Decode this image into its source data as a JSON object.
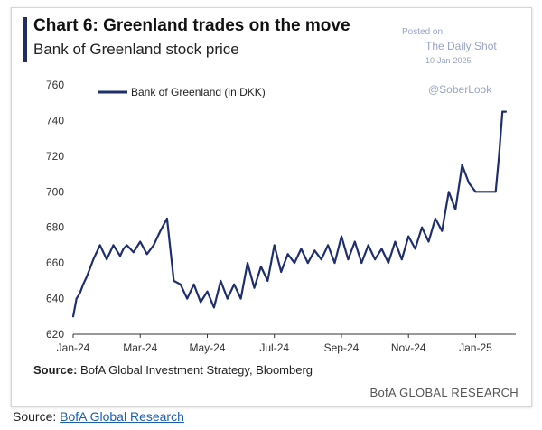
{
  "header": {
    "title": "Chart 6: Greenland trades on the move",
    "subtitle": "Bank of Greenland stock price"
  },
  "watermark": {
    "posted": "Posted on",
    "publication": "The Daily Shot",
    "date": "10-Jan-2025",
    "handle": "@SoberLook"
  },
  "footer": {
    "source_label": "Source:",
    "source_text": "BofA Global Investment Strategy, Bloomberg",
    "brand": "BofA GLOBAL RESEARCH"
  },
  "page_source": {
    "label": "Source:",
    "link_text": "BofA Global Research"
  },
  "colors": {
    "line": "#1f2f6e",
    "axis": "#333333",
    "title_bar": "#1f2f5f",
    "link": "#1a5fb4"
  },
  "chart_data": {
    "type": "line",
    "title": "Chart 6: Greenland trades on the move",
    "subtitle": "Bank of Greenland stock price",
    "xlabel": "",
    "ylabel": "",
    "ylim": [
      620,
      760
    ],
    "yticks": [
      "620",
      "640",
      "660",
      "680",
      "700",
      "720",
      "740",
      "760"
    ],
    "xticks": [
      "Jan-24",
      "Mar-24",
      "May-24",
      "Jul-24",
      "Sep-24",
      "Nov-24",
      "Jan-25"
    ],
    "grid": false,
    "legend": "top-left",
    "series": [
      {
        "name": "Bank of Greenland (in DKK)",
        "x": [
          0,
          0.1,
          0.2,
          0.3,
          0.4,
          0.5,
          0.6,
          0.8,
          1.0,
          1.2,
          1.4,
          1.5,
          1.6,
          1.8,
          2.0,
          2.2,
          2.4,
          2.6,
          2.8,
          3.0,
          3.2,
          3.4,
          3.6,
          3.8,
          4.0,
          4.2,
          4.4,
          4.6,
          4.8,
          5.0,
          5.2,
          5.4,
          5.6,
          5.8,
          6.0,
          6.2,
          6.4,
          6.6,
          6.8,
          7.0,
          7.2,
          7.4,
          7.6,
          7.8,
          8.0,
          8.2,
          8.4,
          8.6,
          8.8,
          9.0,
          9.2,
          9.4,
          9.6,
          9.8,
          10.0,
          10.2,
          10.4,
          10.6,
          10.8,
          11.0,
          11.2,
          11.4,
          11.6,
          11.8,
          12.0,
          12.2,
          12.3,
          12.4,
          12.5,
          12.6,
          12.7,
          12.8,
          12.9
        ],
        "values": [
          630,
          640,
          643,
          648,
          652,
          657,
          662,
          670,
          662,
          670,
          664,
          668,
          670,
          666,
          672,
          665,
          670,
          678,
          685,
          650,
          648,
          640,
          648,
          638,
          644,
          635,
          650,
          640,
          648,
          640,
          660,
          646,
          658,
          650,
          670,
          655,
          665,
          660,
          668,
          660,
          667,
          662,
          670,
          660,
          675,
          662,
          672,
          660,
          670,
          662,
          668,
          660,
          672,
          662,
          675,
          668,
          680,
          672,
          685,
          678,
          700,
          690,
          715,
          705,
          700,
          700,
          700,
          700,
          700,
          700,
          720,
          745,
          745
        ]
      }
    ]
  }
}
